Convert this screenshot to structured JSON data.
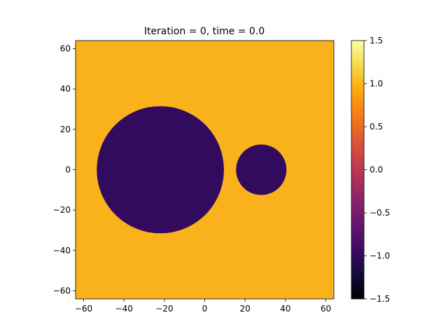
{
  "chart_data": {
    "type": "heatmap",
    "title": "Iteration = 0, time = 0.0",
    "xlabel": "",
    "ylabel": "",
    "xlim": [
      -64,
      64
    ],
    "ylim": [
      -64,
      64
    ],
    "x_ticks": [
      -60,
      -40,
      -20,
      0,
      20,
      40,
      60
    ],
    "y_ticks": [
      -60,
      -40,
      -20,
      0,
      20,
      40,
      60
    ],
    "x_tick_labels": [
      "−60",
      "−40",
      "−20",
      "0",
      "20",
      "40",
      "60"
    ],
    "y_tick_labels": [
      "−60",
      "−40",
      "−20",
      "0",
      "20",
      "40",
      "60"
    ],
    "colormap": "inferno",
    "vmin": -1.5,
    "vmax": 1.5,
    "background_value": 1.0,
    "regions": [
      {
        "shape": "circle",
        "center_x": -22,
        "center_y": 0,
        "radius": 31.5,
        "value": -1.0
      },
      {
        "shape": "circle",
        "center_x": 28,
        "center_y": 0,
        "radius": 12.5,
        "value": -1.0
      }
    ],
    "colorbar": {
      "ticks": [
        -1.5,
        -1.0,
        -0.5,
        0.0,
        0.5,
        1.0,
        1.5
      ],
      "tick_labels": [
        "−1.5",
        "−1.0",
        "−0.5",
        "0.0",
        "0.5",
        "1.0",
        "1.5"
      ]
    },
    "colors": {
      "background_region": "#f9b21c",
      "circle_region": "#320a5e"
    }
  }
}
